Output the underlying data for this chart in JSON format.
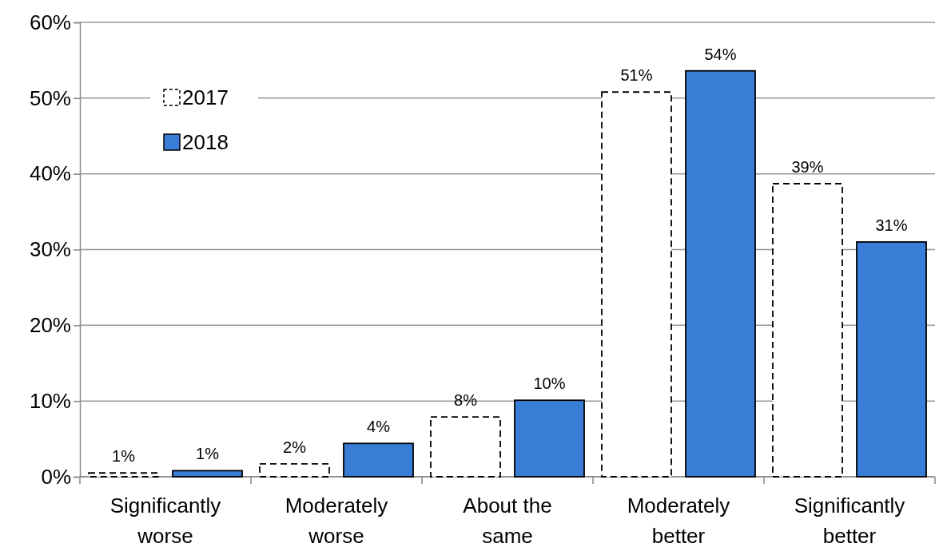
{
  "chart_data": {
    "type": "bar",
    "categories": [
      "Significantly worse",
      "Moderately worse",
      "About the same",
      "Moderately better",
      "Significantly better"
    ],
    "series": [
      {
        "name": "2017",
        "color": "#ffffff",
        "line_style": "dashed",
        "values": [
          0.5,
          1.7,
          7.9,
          50.8,
          38.7
        ],
        "value_labels": [
          "1%",
          "2%",
          "8%",
          "51%",
          "39%"
        ]
      },
      {
        "name": "2018",
        "color": "#3a7dd6",
        "values": [
          0.8,
          4.4,
          10.1,
          53.6,
          31
        ],
        "value_labels": [
          "1%",
          "4%",
          "10%",
          "54%",
          "31%"
        ]
      }
    ],
    "ylim": [
      0,
      60
    ],
    "yticks": [
      {
        "value": 0,
        "label": "0%"
      },
      {
        "value": 10,
        "label": "10%"
      },
      {
        "value": 20,
        "label": "20%"
      },
      {
        "value": 30,
        "label": "30%"
      },
      {
        "value": 40,
        "label": "40%"
      },
      {
        "value": 50,
        "label": "50%"
      },
      {
        "value": 60,
        "label": "60%"
      }
    ],
    "grid": "y",
    "legend": "top left"
  }
}
